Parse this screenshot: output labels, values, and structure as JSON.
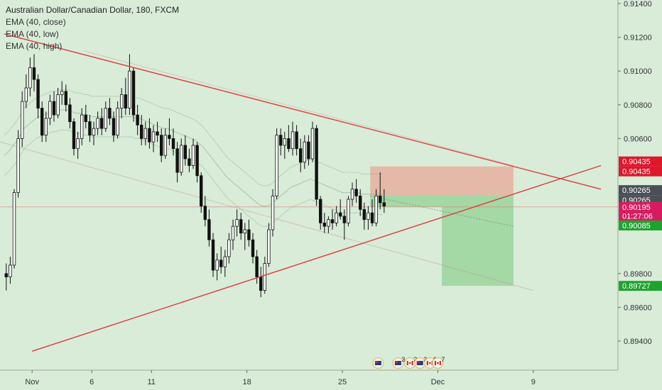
{
  "legend": {
    "title": "Australian Dollar/Canadian Dollar, 180, FXCM",
    "lines": [
      "EMA (40, close)",
      "EMA (40, low)",
      "EMA (40, high)"
    ]
  },
  "colors": {
    "background": "#d8ecd8",
    "candle": "#111111",
    "trendline": "#e03a3a",
    "stop_zone": "#e8b0a0",
    "target_zone": "#9fd6a0",
    "tag_red": "#e0162b",
    "tag_green": "#1fa32f",
    "tag_pink": "#d81b60",
    "tag_gray": "#4a4f57"
  },
  "chart_data": {
    "type": "candlestick",
    "y_range": [
      0.894,
      0.914
    ],
    "y_ticks": [
      "0.91400",
      "0.91200",
      "0.91000",
      "0.90800",
      "0.90600",
      "0.89800",
      "0.89600",
      "0.89400"
    ],
    "x_ticks": [
      {
        "label": "Nov",
        "bar": 7
      },
      {
        "label": "6",
        "bar": 22
      },
      {
        "label": "11",
        "bar": 37
      },
      {
        "label": "18",
        "bar": 61
      },
      {
        "label": "25",
        "bar": 85
      },
      {
        "label": "Dec",
        "bar": 109
      },
      {
        "label": "9",
        "bar": 133
      }
    ],
    "candles": [
      [
        0.898,
        0.8986,
        0.897,
        0.8978
      ],
      [
        0.8978,
        0.899,
        0.8974,
        0.8985
      ],
      [
        0.8985,
        0.903,
        0.8983,
        0.9028
      ],
      [
        0.9028,
        0.9065,
        0.9025,
        0.906
      ],
      [
        0.906,
        0.9088,
        0.9055,
        0.9082
      ],
      [
        0.9082,
        0.9098,
        0.9078,
        0.909
      ],
      [
        0.909,
        0.9108,
        0.9085,
        0.9102
      ],
      [
        0.9102,
        0.911,
        0.9088,
        0.9095
      ],
      [
        0.9095,
        0.9098,
        0.9072,
        0.9078
      ],
      [
        0.9078,
        0.9082,
        0.9058,
        0.9062
      ],
      [
        0.9062,
        0.9076,
        0.9058,
        0.9072
      ],
      [
        0.9072,
        0.9086,
        0.9068,
        0.9082
      ],
      [
        0.9082,
        0.9088,
        0.907,
        0.9074
      ],
      [
        0.9074,
        0.909,
        0.9072,
        0.9086
      ],
      [
        0.9086,
        0.9094,
        0.908,
        0.9088
      ],
      [
        0.9088,
        0.9092,
        0.9076,
        0.908
      ],
      [
        0.908,
        0.9084,
        0.9066,
        0.907
      ],
      [
        0.907,
        0.9072,
        0.905,
        0.9054
      ],
      [
        0.9054,
        0.9064,
        0.9048,
        0.906
      ],
      [
        0.906,
        0.9078,
        0.9056,
        0.9074
      ],
      [
        0.9074,
        0.908,
        0.9066,
        0.907
      ],
      [
        0.907,
        0.9074,
        0.9058,
        0.9062
      ],
      [
        0.9062,
        0.907,
        0.9056,
        0.9066
      ],
      [
        0.9066,
        0.9076,
        0.9062,
        0.9072
      ],
      [
        0.9072,
        0.9078,
        0.9062,
        0.9066
      ],
      [
        0.9066,
        0.9082,
        0.9064,
        0.9078
      ],
      [
        0.9078,
        0.9084,
        0.9068,
        0.9072
      ],
      [
        0.9072,
        0.9076,
        0.9058,
        0.9062
      ],
      [
        0.9062,
        0.9082,
        0.906,
        0.9078
      ],
      [
        0.9078,
        0.909,
        0.9072,
        0.9086
      ],
      [
        0.9086,
        0.9096,
        0.9074,
        0.9078
      ],
      [
        0.9078,
        0.911,
        0.9074,
        0.91
      ],
      [
        0.91,
        0.9102,
        0.907,
        0.9074
      ],
      [
        0.9074,
        0.908,
        0.9062,
        0.9068
      ],
      [
        0.9068,
        0.9074,
        0.9056,
        0.906
      ],
      [
        0.906,
        0.907,
        0.9056,
        0.9066
      ],
      [
        0.9066,
        0.9072,
        0.9054,
        0.9058
      ],
      [
        0.9058,
        0.9068,
        0.9052,
        0.9064
      ],
      [
        0.9064,
        0.907,
        0.9058,
        0.9062
      ],
      [
        0.9062,
        0.9066,
        0.9046,
        0.905
      ],
      [
        0.905,
        0.9066,
        0.9048,
        0.9062
      ],
      [
        0.9062,
        0.9072,
        0.9056,
        0.906
      ],
      [
        0.906,
        0.9066,
        0.905,
        0.9054
      ],
      [
        0.9054,
        0.9058,
        0.9034,
        0.904
      ],
      [
        0.904,
        0.906,
        0.9038,
        0.9056
      ],
      [
        0.9056,
        0.9062,
        0.9044,
        0.9048
      ],
      [
        0.9048,
        0.9054,
        0.904,
        0.9044
      ],
      [
        0.9044,
        0.906,
        0.9042,
        0.9056
      ],
      [
        0.9056,
        0.9058,
        0.9034,
        0.9038
      ],
      [
        0.9038,
        0.904,
        0.9016,
        0.902
      ],
      [
        0.902,
        0.9026,
        0.9008,
        0.9012
      ],
      [
        0.9012,
        0.9018,
        0.8996,
        0.9
      ],
      [
        0.9,
        0.9004,
        0.8978,
        0.8982
      ],
      [
        0.8982,
        0.8992,
        0.8976,
        0.8988
      ],
      [
        0.8988,
        0.8996,
        0.898,
        0.8984
      ],
      [
        0.8984,
        0.8994,
        0.8978,
        0.899
      ],
      [
        0.899,
        0.9004,
        0.8986,
        0.9
      ],
      [
        0.9,
        0.9012,
        0.8994,
        0.9008
      ],
      [
        0.9008,
        0.9018,
        0.9002,
        0.9012
      ],
      [
        0.9012,
        0.9016,
        0.9,
        0.9004
      ],
      [
        0.9004,
        0.901,
        0.8994,
        0.9006
      ],
      [
        0.9006,
        0.9012,
        0.8996,
        0.9
      ],
      [
        0.9,
        0.9004,
        0.8986,
        0.899
      ],
      [
        0.899,
        0.8994,
        0.8974,
        0.8978
      ],
      [
        0.8978,
        0.8984,
        0.8966,
        0.897
      ],
      [
        0.897,
        0.899,
        0.8968,
        0.8986
      ],
      [
        0.8986,
        0.901,
        0.8984,
        0.9006
      ],
      [
        0.9006,
        0.903,
        0.9002,
        0.9026
      ],
      [
        0.9026,
        0.9066,
        0.9024,
        0.9062
      ],
      [
        0.9062,
        0.9066,
        0.905,
        0.9056
      ],
      [
        0.9056,
        0.9064,
        0.9048,
        0.906
      ],
      [
        0.906,
        0.9068,
        0.9052,
        0.9054
      ],
      [
        0.9054,
        0.907,
        0.905,
        0.9064
      ],
      [
        0.9064,
        0.9068,
        0.905,
        0.9054
      ],
      [
        0.9054,
        0.906,
        0.904,
        0.9046
      ],
      [
        0.9046,
        0.9062,
        0.9042,
        0.9058
      ],
      [
        0.9058,
        0.9062,
        0.9044,
        0.9048
      ],
      [
        0.9048,
        0.907,
        0.9046,
        0.9066
      ],
      [
        0.9066,
        0.9068,
        0.902,
        0.9024
      ],
      [
        0.9024,
        0.9026,
        0.9006,
        0.901
      ],
      [
        0.901,
        0.9016,
        0.9004,
        0.9008
      ],
      [
        0.9008,
        0.9014,
        0.9004,
        0.9012
      ],
      [
        0.9012,
        0.9018,
        0.9006,
        0.901
      ],
      [
        0.901,
        0.902,
        0.9008,
        0.9016
      ],
      [
        0.9016,
        0.9024,
        0.9012,
        0.9014
      ],
      [
        0.9014,
        0.9018,
        0.9,
        0.901
      ],
      [
        0.901,
        0.9026,
        0.9008,
        0.9024
      ],
      [
        0.9024,
        0.9034,
        0.902,
        0.903
      ],
      [
        0.903,
        0.9036,
        0.9022,
        0.9026
      ],
      [
        0.9026,
        0.903,
        0.9014,
        0.9018
      ],
      [
        0.9018,
        0.9022,
        0.9006,
        0.9012
      ],
      [
        0.9012,
        0.902,
        0.9006,
        0.9016
      ],
      [
        0.9016,
        0.9024,
        0.9008,
        0.901
      ],
      [
        0.901,
        0.903,
        0.9008,
        0.9026
      ],
      [
        0.9026,
        0.904,
        0.9018,
        0.9022
      ],
      [
        0.9022,
        0.903,
        0.9016,
        0.902
      ]
    ],
    "ema_close": [
      0.905,
      0.9052,
      0.9055,
      0.9058,
      0.9062,
      0.9066,
      0.9068,
      0.907,
      0.9072,
      0.9073,
      0.9074,
      0.9075,
      0.9076,
      0.9076,
      0.9077,
      0.9077,
      0.9077,
      0.9076,
      0.9075,
      0.9075,
      0.9074,
      0.9074,
      0.9073,
      0.9073,
      0.9073,
      0.9073,
      0.9073,
      0.9073,
      0.9073,
      0.9073,
      0.9073,
      0.9073,
      0.9073,
      0.9072,
      0.9072,
      0.9071,
      0.907,
      0.9069,
      0.9068,
      0.9067,
      0.9066,
      0.9066,
      0.9065,
      0.9064,
      0.9063,
      0.9062,
      0.9061,
      0.906,
      0.9059,
      0.9057,
      0.9055,
      0.9052,
      0.9049,
      0.9046,
      0.9043,
      0.904,
      0.9037,
      0.9035,
      0.9033,
      0.9031,
      0.9029,
      0.9027,
      0.9025,
      0.9023,
      0.9021,
      0.902,
      0.902,
      0.9021,
      0.9023,
      0.9025,
      0.9027,
      0.9029,
      0.9031,
      0.9032,
      0.9033,
      0.9034,
      0.9035,
      0.9036,
      0.9035,
      0.9034,
      0.9033,
      0.9032,
      0.9031,
      0.903,
      0.9029,
      0.9028,
      0.9028,
      0.9028,
      0.9028,
      0.9028,
      0.9027,
      0.9027,
      0.9027,
      0.9027,
      0.9027,
      0.9027
    ],
    "trendlines": [
      {
        "x1": 0,
        "y1": 0.9122,
        "x2": 150,
        "y2": 0.903
      },
      {
        "x1": 7,
        "y1": 0.8934,
        "x2": 150,
        "y2": 0.9044
      }
    ],
    "position": {
      "entry_bar": 92,
      "end_bar": 128,
      "entry": 0.90265,
      "stop": 0.90435,
      "target": 0.89727,
      "mid": 0.90195,
      "step_bar": 110
    },
    "price_tags": [
      {
        "label": "0.90435",
        "price": 0.90435,
        "color": "#e0162b",
        "offset": -7
      },
      {
        "label": "0.90435",
        "price": 0.90435,
        "color": "#e0162b",
        "offset": 7
      },
      {
        "label": "0.90265",
        "price": 0.90265,
        "color": "#4a4f57",
        "offset": -7
      },
      {
        "label": "0.90265",
        "price": 0.90265,
        "color": "#4a4f57",
        "offset": 7
      },
      {
        "label": "0.90195",
        "price": 0.90195,
        "color": "#d81b60",
        "offset": 0
      },
      {
        "label": "01:27:06",
        "price": 0.90142,
        "color": "#d81b60",
        "offset": 0
      },
      {
        "label": "0.90085",
        "price": 0.90085,
        "color": "#1fa32f",
        "offset": 0
      },
      {
        "label": "0.89727",
        "price": 0.89727,
        "color": "#1fa32f",
        "offset": 0
      }
    ],
    "events": [
      {
        "bar": 94,
        "kind": "au-flag",
        "count": ""
      },
      {
        "bar": 99,
        "kind": "au-flag",
        "count": "3"
      },
      {
        "bar": 102,
        "kind": "ca-flag",
        "count": "2"
      },
      {
        "bar": 104.5,
        "kind": "au-flag",
        "count": "3"
      },
      {
        "bar": 107,
        "kind": "ca-flag",
        "count": "9"
      },
      {
        "bar": 109,
        "kind": "ca-flag",
        "count": "7"
      }
    ]
  }
}
